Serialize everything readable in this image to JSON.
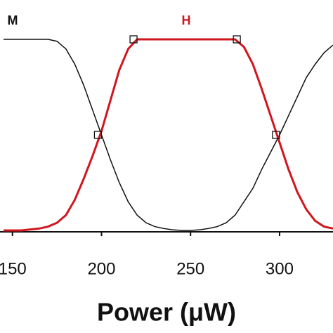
{
  "chart_data": {
    "type": "line",
    "xlabel": "Power (μW)",
    "x": [
      145,
      150,
      155,
      160,
      165,
      170,
      175,
      180,
      185,
      190,
      195,
      200,
      205,
      210,
      215,
      220,
      225,
      230,
      235,
      240,
      245,
      250,
      255,
      260,
      265,
      270,
      275,
      280,
      285,
      290,
      295,
      300,
      305,
      310,
      315,
      320,
      325,
      330
    ],
    "series": [
      {
        "name": "M",
        "color": "#111111",
        "values": [
          1,
          1,
          1,
          1,
          1,
          1,
          0.99,
          0.95,
          0.87,
          0.76,
          0.63,
          0.5,
          0.37,
          0.25,
          0.15,
          0.08,
          0.04,
          0.02,
          0.01,
          0.003,
          0,
          0,
          0.003,
          0.01,
          0.02,
          0.04,
          0.08,
          0.15,
          0.22,
          0.32,
          0.41,
          0.5,
          0.6,
          0.7,
          0.8,
          0.87,
          0.93,
          0.97
        ]
      },
      {
        "name": "H",
        "color": "#d0161e",
        "values": [
          0,
          0,
          0,
          0.005,
          0.01,
          0.02,
          0.04,
          0.08,
          0.16,
          0.27,
          0.39,
          0.52,
          0.68,
          0.84,
          0.95,
          1,
          1,
          1,
          1,
          1,
          1,
          1,
          1,
          1,
          1,
          1,
          1,
          0.96,
          0.87,
          0.74,
          0.6,
          0.46,
          0.32,
          0.2,
          0.11,
          0.05,
          0.02,
          0.01
        ],
        "markers": {
          "x": [
            198,
            218,
            276,
            298
          ],
          "y": [
            0.5,
            1,
            1,
            0.5
          ]
        }
      }
    ],
    "xlim": [
      143,
      330
    ],
    "ylim": [
      0,
      1
    ],
    "xticks": [
      150,
      200,
      250,
      300
    ]
  }
}
